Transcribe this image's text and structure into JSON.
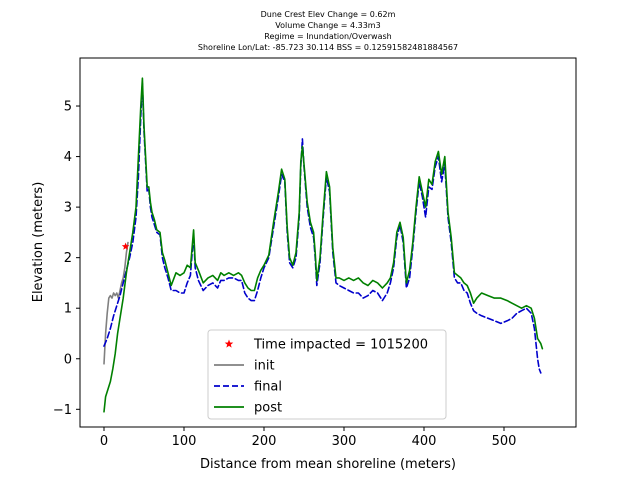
{
  "chart_data": {
    "type": "line",
    "title_lines": [
      "Dune Crest Elev Change = 0.62m",
      "Volume Change = 4.33m3",
      "Regime = Inundation/Overwash",
      "Shoreline Lon/Lat: -85.723 30.114   BSS = 0.12591582481884567"
    ],
    "xlabel": "Distance from mean shoreline (meters)",
    "ylabel": "Elevation (meters)",
    "xlim": [
      -30,
      590
    ],
    "ylim": [
      -1.35,
      5.95
    ],
    "xticks": [
      0,
      100,
      200,
      300,
      400,
      500
    ],
    "yticks": [
      -1,
      0,
      1,
      2,
      3,
      4,
      5
    ],
    "ytick_labels": [
      "−1",
      "0",
      "1",
      "2",
      "3",
      "4",
      "5"
    ],
    "grid": false,
    "legend_location": "lower center",
    "colors": {
      "init": "#808080",
      "final": "#0000cc",
      "post": "#008000",
      "marker": "#ff0000"
    },
    "marker": {
      "name": "Time impacted = 1015200",
      "x": 27,
      "y": 2.22
    },
    "series": [
      {
        "name": "init",
        "style": "solid",
        "points": [
          [
            0,
            -0.1
          ],
          [
            2,
            0.5
          ],
          [
            4,
            0.9
          ],
          [
            6,
            1.2
          ],
          [
            8,
            1.25
          ],
          [
            10,
            1.2
          ],
          [
            12,
            1.3
          ],
          [
            14,
            1.25
          ],
          [
            16,
            1.3
          ],
          [
            18,
            1.2
          ],
          [
            20,
            1.35
          ],
          [
            22,
            1.5
          ],
          [
            24,
            1.6
          ],
          [
            26,
            1.8
          ],
          [
            28,
            2.1
          ],
          [
            30,
            2.3
          ]
        ]
      },
      {
        "name": "final",
        "style": "dashed",
        "points": [
          [
            0,
            0.25
          ],
          [
            4,
            0.4
          ],
          [
            8,
            0.6
          ],
          [
            12,
            0.85
          ],
          [
            16,
            1.05
          ],
          [
            20,
            1.25
          ],
          [
            24,
            1.5
          ],
          [
            28,
            1.75
          ],
          [
            32,
            2.0
          ],
          [
            36,
            2.3
          ],
          [
            40,
            2.8
          ],
          [
            43,
            3.6
          ],
          [
            46,
            4.8
          ],
          [
            48,
            5.45
          ],
          [
            50,
            4.5
          ],
          [
            52,
            3.9
          ],
          [
            54,
            3.3
          ],
          [
            56,
            3.35
          ],
          [
            58,
            3.0
          ],
          [
            60,
            2.8
          ],
          [
            63,
            2.65
          ],
          [
            66,
            2.5
          ],
          [
            70,
            2.45
          ],
          [
            73,
            2.0
          ],
          [
            76,
            1.8
          ],
          [
            80,
            1.6
          ],
          [
            84,
            1.35
          ],
          [
            90,
            1.35
          ],
          [
            95,
            1.3
          ],
          [
            100,
            1.3
          ],
          [
            104,
            1.5
          ],
          [
            108,
            1.65
          ],
          [
            112,
            2.45
          ],
          [
            114,
            1.8
          ],
          [
            118,
            1.55
          ],
          [
            124,
            1.35
          ],
          [
            130,
            1.45
          ],
          [
            136,
            1.5
          ],
          [
            142,
            1.4
          ],
          [
            146,
            1.55
          ],
          [
            150,
            1.55
          ],
          [
            156,
            1.6
          ],
          [
            162,
            1.6
          ],
          [
            168,
            1.55
          ],
          [
            172,
            1.55
          ],
          [
            176,
            1.3
          ],
          [
            180,
            1.2
          ],
          [
            184,
            1.15
          ],
          [
            188,
            1.15
          ],
          [
            192,
            1.35
          ],
          [
            196,
            1.6
          ],
          [
            200,
            1.8
          ],
          [
            206,
            2.0
          ],
          [
            212,
            2.6
          ],
          [
            218,
            3.2
          ],
          [
            222,
            3.65
          ],
          [
            226,
            3.5
          ],
          [
            229,
            2.5
          ],
          [
            232,
            1.9
          ],
          [
            236,
            1.8
          ],
          [
            240,
            2.0
          ],
          [
            244,
            2.8
          ],
          [
            246,
            3.8
          ],
          [
            248,
            4.35
          ],
          [
            250,
            3.8
          ],
          [
            254,
            3.0
          ],
          [
            258,
            2.6
          ],
          [
            262,
            2.4
          ],
          [
            264,
            2.0
          ],
          [
            266,
            1.45
          ],
          [
            270,
            1.9
          ],
          [
            274,
            2.8
          ],
          [
            278,
            3.6
          ],
          [
            282,
            3.3
          ],
          [
            286,
            2.1
          ],
          [
            290,
            1.5
          ],
          [
            294,
            1.45
          ],
          [
            300,
            1.4
          ],
          [
            306,
            1.35
          ],
          [
            312,
            1.3
          ],
          [
            318,
            1.3
          ],
          [
            324,
            1.2
          ],
          [
            330,
            1.25
          ],
          [
            336,
            1.35
          ],
          [
            342,
            1.3
          ],
          [
            348,
            1.15
          ],
          [
            354,
            1.3
          ],
          [
            358,
            1.5
          ],
          [
            362,
            1.8
          ],
          [
            366,
            2.4
          ],
          [
            370,
            2.65
          ],
          [
            374,
            2.3
          ],
          [
            378,
            1.4
          ],
          [
            382,
            1.6
          ],
          [
            386,
            2.2
          ],
          [
            390,
            2.9
          ],
          [
            394,
            3.5
          ],
          [
            398,
            3.2
          ],
          [
            402,
            2.8
          ],
          [
            406,
            3.4
          ],
          [
            410,
            3.35
          ],
          [
            414,
            3.8
          ],
          [
            418,
            4.0
          ],
          [
            422,
            3.5
          ],
          [
            426,
            3.85
          ],
          [
            430,
            2.8
          ],
          [
            434,
            2.3
          ],
          [
            438,
            1.6
          ],
          [
            442,
            1.5
          ],
          [
            446,
            1.5
          ],
          [
            450,
            1.35
          ],
          [
            454,
            1.3
          ],
          [
            458,
            1.1
          ],
          [
            462,
            0.95
          ],
          [
            466,
            0.9
          ],
          [
            472,
            0.85
          ],
          [
            480,
            0.8
          ],
          [
            488,
            0.75
          ],
          [
            496,
            0.7
          ],
          [
            504,
            0.75
          ],
          [
            510,
            0.8
          ],
          [
            516,
            0.9
          ],
          [
            522,
            0.95
          ],
          [
            528,
            1.0
          ],
          [
            534,
            0.9
          ],
          [
            538,
            0.6
          ],
          [
            540,
            0.3
          ],
          [
            542,
            0.0
          ],
          [
            544,
            -0.2
          ],
          [
            546,
            -0.28
          ]
        ]
      },
      {
        "name": "post",
        "style": "solid",
        "points": [
          [
            0,
            -1.05
          ],
          [
            2,
            -0.75
          ],
          [
            5,
            -0.6
          ],
          [
            8,
            -0.45
          ],
          [
            11,
            -0.2
          ],
          [
            14,
            0.1
          ],
          [
            17,
            0.5
          ],
          [
            20,
            0.8
          ],
          [
            24,
            1.2
          ],
          [
            28,
            1.7
          ],
          [
            32,
            2.1
          ],
          [
            36,
            2.5
          ],
          [
            40,
            3.0
          ],
          [
            43,
            4.0
          ],
          [
            46,
            5.0
          ],
          [
            48,
            5.55
          ],
          [
            50,
            4.6
          ],
          [
            52,
            4.0
          ],
          [
            54,
            3.4
          ],
          [
            56,
            3.4
          ],
          [
            58,
            3.1
          ],
          [
            60,
            2.9
          ],
          [
            63,
            2.75
          ],
          [
            66,
            2.55
          ],
          [
            70,
            2.5
          ],
          [
            73,
            2.1
          ],
          [
            76,
            1.95
          ],
          [
            80,
            1.7
          ],
          [
            84,
            1.45
          ],
          [
            90,
            1.7
          ],
          [
            95,
            1.65
          ],
          [
            100,
            1.7
          ],
          [
            104,
            1.85
          ],
          [
            108,
            1.8
          ],
          [
            112,
            2.55
          ],
          [
            114,
            1.9
          ],
          [
            118,
            1.75
          ],
          [
            124,
            1.5
          ],
          [
            130,
            1.6
          ],
          [
            136,
            1.65
          ],
          [
            142,
            1.55
          ],
          [
            146,
            1.7
          ],
          [
            150,
            1.65
          ],
          [
            156,
            1.7
          ],
          [
            162,
            1.65
          ],
          [
            168,
            1.7
          ],
          [
            172,
            1.65
          ],
          [
            176,
            1.5
          ],
          [
            180,
            1.4
          ],
          [
            184,
            1.35
          ],
          [
            188,
            1.35
          ],
          [
            192,
            1.6
          ],
          [
            196,
            1.75
          ],
          [
            200,
            1.85
          ],
          [
            206,
            2.05
          ],
          [
            212,
            2.7
          ],
          [
            218,
            3.3
          ],
          [
            222,
            3.75
          ],
          [
            226,
            3.55
          ],
          [
            229,
            2.6
          ],
          [
            232,
            2.0
          ],
          [
            236,
            1.85
          ],
          [
            240,
            2.1
          ],
          [
            244,
            2.9
          ],
          [
            246,
            3.9
          ],
          [
            248,
            4.2
          ],
          [
            250,
            3.85
          ],
          [
            254,
            3.1
          ],
          [
            258,
            2.7
          ],
          [
            262,
            2.5
          ],
          [
            264,
            2.1
          ],
          [
            266,
            1.55
          ],
          [
            270,
            2.0
          ],
          [
            274,
            2.9
          ],
          [
            278,
            3.7
          ],
          [
            282,
            3.4
          ],
          [
            286,
            2.2
          ],
          [
            290,
            1.6
          ],
          [
            294,
            1.6
          ],
          [
            300,
            1.55
          ],
          [
            306,
            1.6
          ],
          [
            312,
            1.55
          ],
          [
            318,
            1.6
          ],
          [
            324,
            1.5
          ],
          [
            330,
            1.45
          ],
          [
            336,
            1.55
          ],
          [
            342,
            1.5
          ],
          [
            348,
            1.4
          ],
          [
            354,
            1.5
          ],
          [
            358,
            1.6
          ],
          [
            362,
            1.9
          ],
          [
            366,
            2.5
          ],
          [
            370,
            2.7
          ],
          [
            374,
            2.4
          ],
          [
            378,
            1.5
          ],
          [
            382,
            1.75
          ],
          [
            386,
            2.3
          ],
          [
            390,
            3.0
          ],
          [
            394,
            3.6
          ],
          [
            398,
            3.3
          ],
          [
            402,
            3.0
          ],
          [
            406,
            3.55
          ],
          [
            410,
            3.45
          ],
          [
            414,
            3.9
          ],
          [
            418,
            4.1
          ],
          [
            422,
            3.65
          ],
          [
            426,
            4.0
          ],
          [
            430,
            2.9
          ],
          [
            434,
            2.4
          ],
          [
            438,
            1.7
          ],
          [
            442,
            1.65
          ],
          [
            446,
            1.6
          ],
          [
            450,
            1.5
          ],
          [
            454,
            1.45
          ],
          [
            458,
            1.3
          ],
          [
            462,
            1.1
          ],
          [
            466,
            1.2
          ],
          [
            472,
            1.3
          ],
          [
            480,
            1.25
          ],
          [
            488,
            1.2
          ],
          [
            496,
            1.2
          ],
          [
            504,
            1.15
          ],
          [
            510,
            1.1
          ],
          [
            516,
            1.05
          ],
          [
            522,
            1.0
          ],
          [
            528,
            1.05
          ],
          [
            534,
            1.0
          ],
          [
            538,
            0.8
          ],
          [
            540,
            0.6
          ],
          [
            542,
            0.4
          ],
          [
            546,
            0.3
          ],
          [
            548,
            0.2
          ]
        ]
      }
    ]
  }
}
